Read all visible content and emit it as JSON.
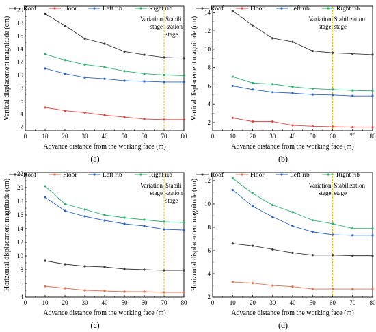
{
  "chart_data": [
    {
      "type": "line",
      "panel_label": "(a)",
      "xlabel": "Advance distance from the working face (m)",
      "ylabel": "Vertical displacement magnitude (cm)",
      "x": [
        10,
        20,
        30,
        40,
        50,
        60,
        70,
        80
      ],
      "xlim": [
        0,
        80
      ],
      "xticks": [
        0,
        10,
        20,
        30,
        40,
        50,
        60,
        70,
        80
      ],
      "ylim": [
        1.4,
        20.6
      ],
      "yticks": [
        2,
        4,
        6,
        8,
        10,
        12,
        14,
        16,
        18,
        20
      ],
      "vline_x": 70,
      "stage_left_label": [
        "Variation",
        "stage"
      ],
      "stage_right_label": [
        "Stabili",
        "-zation",
        "stage"
      ],
      "legend_position": "top",
      "series": [
        {
          "name": "Roof",
          "color": "#3a3a3a",
          "values": [
            19.4,
            17.6,
            15.6,
            14.8,
            13.6,
            13.1,
            12.7,
            12.6
          ]
        },
        {
          "name": "Floor",
          "color": "#e8403f",
          "values": [
            5.0,
            4.5,
            4.2,
            3.8,
            3.5,
            3.2,
            3.1,
            3.1
          ]
        },
        {
          "name": "Left rib",
          "color": "#2a64c8",
          "values": [
            11.0,
            10.2,
            9.6,
            9.4,
            9.1,
            9.0,
            8.9,
            8.9
          ]
        },
        {
          "name": "Right rib",
          "color": "#2ab06e",
          "values": [
            13.2,
            12.3,
            11.6,
            11.2,
            10.6,
            10.2,
            10.0,
            9.9
          ]
        }
      ]
    },
    {
      "type": "line",
      "panel_label": "(b)",
      "xlabel": "Advance distance from the working face (m)",
      "ylabel": "Vertical displacement magnitude (cm)",
      "x": [
        10,
        20,
        30,
        40,
        50,
        60,
        70,
        80
      ],
      "xlim": [
        0,
        80
      ],
      "xticks": [
        0,
        10,
        20,
        30,
        40,
        50,
        60,
        70,
        80
      ],
      "ylim": [
        1.1,
        14.7
      ],
      "yticks": [
        2,
        4,
        6,
        8,
        10,
        12,
        14
      ],
      "vline_x": 60,
      "stage_left_label": [
        "Variation",
        "stage"
      ],
      "stage_right_label": [
        "Stabilization",
        "stage"
      ],
      "legend_position": "top",
      "series": [
        {
          "name": "Roof",
          "color": "#3a3a3a",
          "values": [
            14.2,
            12.6,
            11.2,
            10.8,
            9.8,
            9.6,
            9.5,
            9.4
          ]
        },
        {
          "name": "Floor",
          "color": "#e8403f",
          "values": [
            2.5,
            2.1,
            2.1,
            1.7,
            1.6,
            1.55,
            1.5,
            1.5
          ]
        },
        {
          "name": "Left rib",
          "color": "#2a64c8",
          "values": [
            6.0,
            5.6,
            5.3,
            5.2,
            5.05,
            5.0,
            4.9,
            4.9
          ]
        },
        {
          "name": "Right rib",
          "color": "#2ab06e",
          "values": [
            7.0,
            6.3,
            6.2,
            5.9,
            5.7,
            5.6,
            5.5,
            5.45
          ]
        }
      ]
    },
    {
      "type": "line",
      "panel_label": "(c)",
      "xlabel": "Advance distance from the working face (m)",
      "ylabel": "Horizontal displacement magnitude (cm)",
      "x": [
        10,
        20,
        30,
        40,
        50,
        60,
        70,
        80
      ],
      "xlim": [
        0,
        80
      ],
      "xticks": [
        0,
        10,
        20,
        30,
        40,
        50,
        60,
        70,
        80
      ],
      "ylim": [
        4,
        22.2
      ],
      "yticks": [
        4,
        6,
        8,
        10,
        12,
        14,
        16,
        18,
        20,
        22
      ],
      "vline_x": 70,
      "stage_left_label": [
        "Variation",
        "stage"
      ],
      "stage_right_label": [
        "Stabili",
        "-zation",
        "stage"
      ],
      "legend_position": "top",
      "series": [
        {
          "name": "Roof",
          "color": "#3a3a3a",
          "values": [
            9.3,
            8.8,
            8.5,
            8.4,
            8.1,
            8.0,
            7.9,
            7.9
          ]
        },
        {
          "name": "Floor",
          "color": "#e07050",
          "values": [
            5.6,
            5.3,
            5.0,
            4.9,
            4.8,
            4.8,
            4.7,
            4.7
          ]
        },
        {
          "name": "Left rib",
          "color": "#2a64c8",
          "values": [
            18.6,
            16.6,
            15.8,
            15.2,
            14.7,
            14.4,
            13.9,
            13.8
          ]
        },
        {
          "name": "Right rib",
          "color": "#2ab06e",
          "values": [
            20.2,
            17.6,
            16.8,
            16.0,
            15.6,
            15.3,
            15.0,
            14.9
          ]
        }
      ]
    },
    {
      "type": "line",
      "panel_label": "(d)",
      "xlabel": "Advance distance from the working face (m)",
      "ylabel": "Horizontal displacement magnitude (cm)",
      "x": [
        10,
        20,
        30,
        40,
        50,
        60,
        70,
        80
      ],
      "xlim": [
        0,
        80
      ],
      "xticks": [
        0,
        10,
        20,
        30,
        40,
        50,
        60,
        70,
        80
      ],
      "ylim": [
        2,
        12.7
      ],
      "yticks": [
        2,
        4,
        6,
        8,
        10,
        12
      ],
      "vline_x": 60,
      "stage_left_label": [
        "Variation",
        "stage"
      ],
      "stage_right_label": [
        "Stabilization",
        "stage"
      ],
      "legend_position": "top",
      "series": [
        {
          "name": "Roof",
          "color": "#3a3a3a",
          "values": [
            6.6,
            6.4,
            6.1,
            5.8,
            5.6,
            5.6,
            5.55,
            5.55
          ]
        },
        {
          "name": "Floor",
          "color": "#e07050",
          "values": [
            3.3,
            3.2,
            3.0,
            2.9,
            2.7,
            2.7,
            2.7,
            2.7
          ]
        },
        {
          "name": "Left rib",
          "color": "#2a64c8",
          "values": [
            11.2,
            9.8,
            8.9,
            8.1,
            7.6,
            7.35,
            7.3,
            7.3
          ]
        },
        {
          "name": "Right rib",
          "color": "#2ab06e",
          "values": [
            12.2,
            10.9,
            9.9,
            9.3,
            8.6,
            8.3,
            7.9,
            7.9
          ]
        }
      ]
    }
  ]
}
